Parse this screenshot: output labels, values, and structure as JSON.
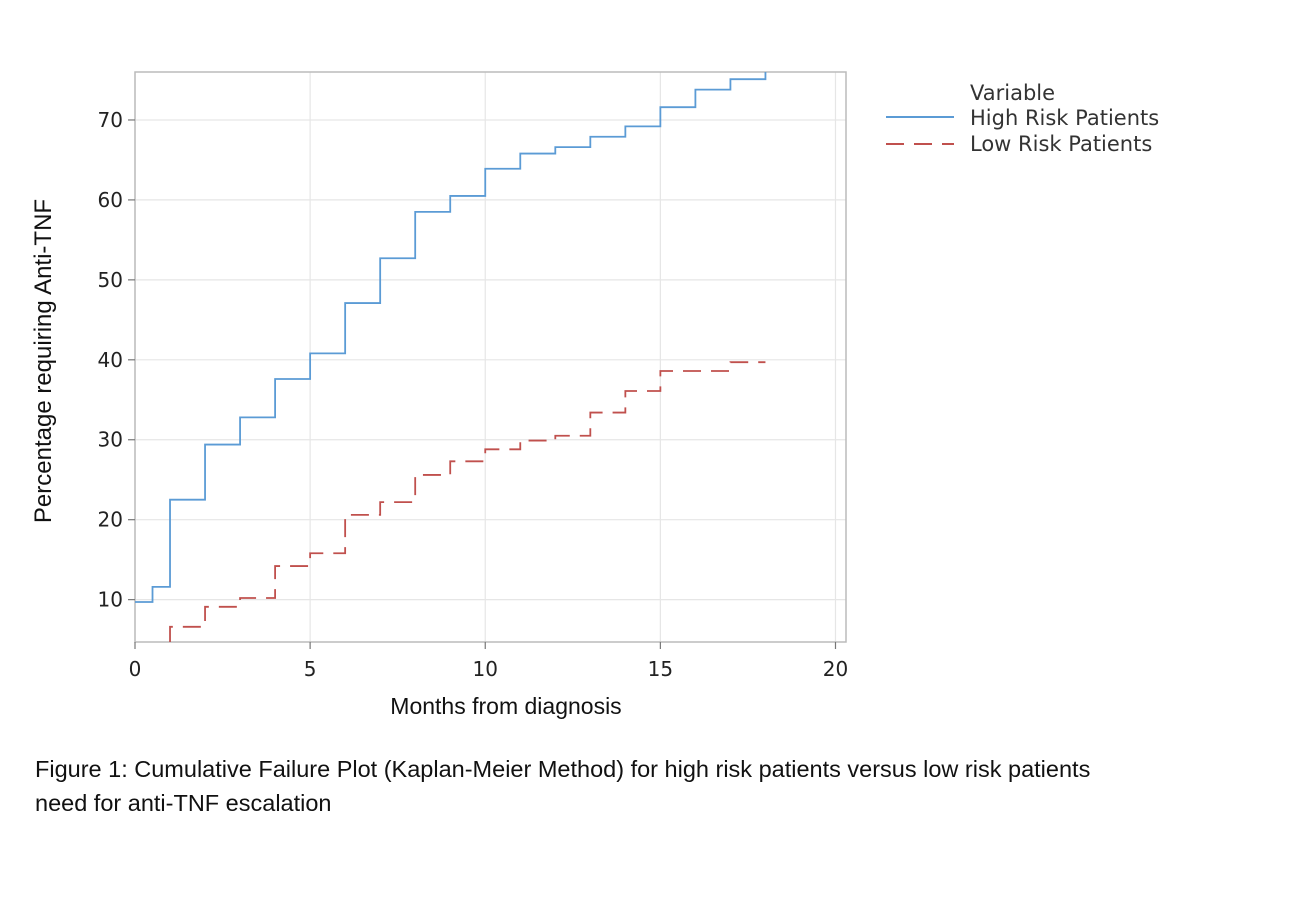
{
  "chart_data": {
    "type": "line",
    "xlabel": "Months from diagnosis",
    "ylabel": "Percentage requiring Anti-TNF",
    "xlim": [
      0,
      20.3
    ],
    "ylim": [
      4.7,
      76
    ],
    "xticks": [
      0,
      5,
      10,
      15,
      20
    ],
    "yticks": [
      10,
      20,
      30,
      40,
      50,
      60,
      70
    ],
    "grid": true,
    "step": true,
    "legend": {
      "title": "Variable",
      "placement": "right"
    },
    "series": [
      {
        "name": "High Risk Patients",
        "color": "#5b9bd5",
        "dash": "solid",
        "x": [
          0,
          0.5,
          1,
          2,
          3,
          4,
          5,
          6,
          7,
          8,
          9,
          10,
          11,
          12,
          13,
          14,
          15,
          16,
          17,
          18
        ],
        "y": [
          9.7,
          11.6,
          22.5,
          29.4,
          32.8,
          37.6,
          40.8,
          47.1,
          52.7,
          58.5,
          60.5,
          63.9,
          65.8,
          66.6,
          67.9,
          69.2,
          71.6,
          73.8,
          75.1,
          76
        ]
      },
      {
        "name": "Low Risk Patients",
        "color": "#c0504d",
        "dash": "dashed",
        "x": [
          1,
          2,
          3,
          4,
          5,
          6,
          7,
          8,
          9,
          10,
          11,
          12,
          13,
          14,
          15,
          16,
          17,
          18
        ],
        "y": [
          6.6,
          9.1,
          10.2,
          14.2,
          15.8,
          20.6,
          22.2,
          25.6,
          27.3,
          28.8,
          29.9,
          30.5,
          33.4,
          36.1,
          38.6,
          38.6,
          39.7,
          39.7
        ]
      }
    ]
  },
  "caption": {
    "line1": "Figure 1: Cumulative Failure Plot (Kaplan-Meier Method) for high risk patients versus low risk patients",
    "line2": "need for anti-TNF escalation"
  }
}
